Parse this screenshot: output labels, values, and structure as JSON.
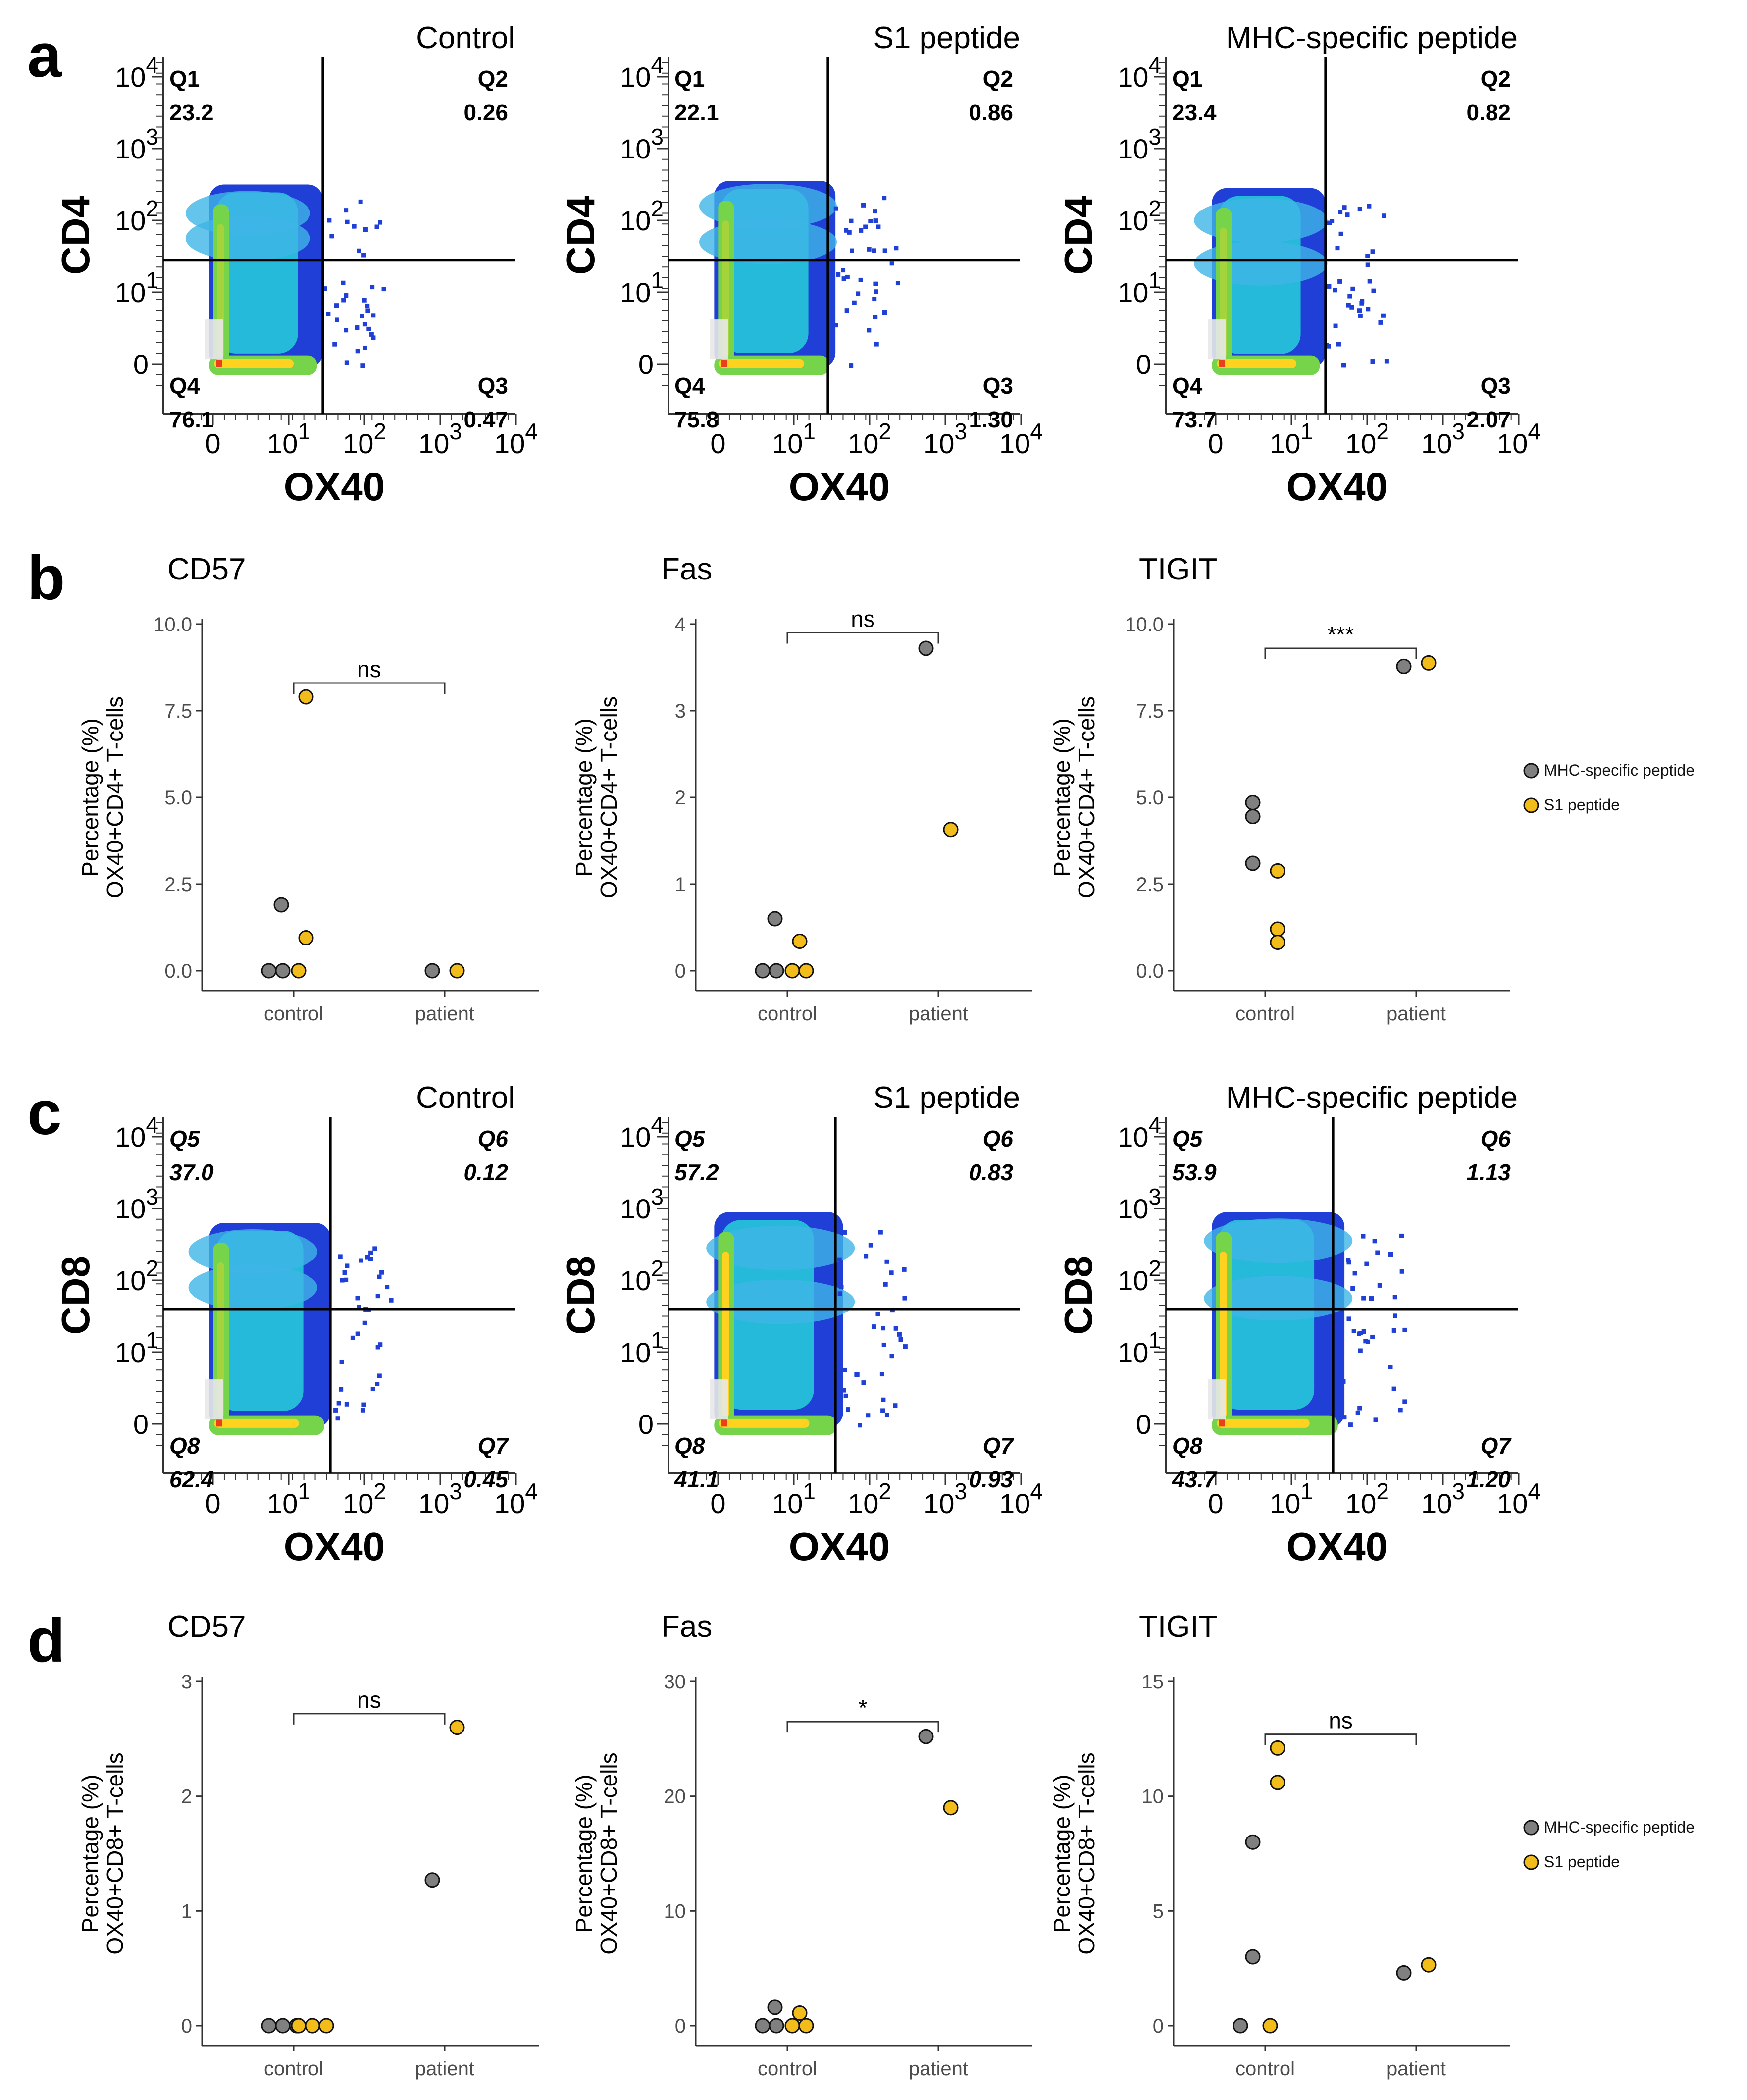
{
  "figure": {
    "colors": {
      "mhc": "#808080",
      "s1": "#F2BC1B",
      "axis": "#333333",
      "gate": "#000000",
      "flow_low": "#1f3fd6",
      "flow_mid": "#26c6da",
      "flow_high": "#76d44a",
      "flow_peak": "#ffd21f",
      "flow_max": "#e8401a"
    },
    "legend": {
      "items": [
        "MHC-specific peptide",
        "S1 peptide"
      ]
    }
  },
  "chart_data": [
    {
      "panel": "a",
      "type": "flow-quadrant",
      "y_channel": "CD4",
      "x_channel": "OX40",
      "y_ticks": [
        {
          "base": "0",
          "exp": ""
        },
        {
          "base": "10",
          "exp": "1"
        },
        {
          "base": "10",
          "exp": "2"
        },
        {
          "base": "10",
          "exp": "3"
        },
        {
          "base": "10",
          "exp": "4"
        }
      ],
      "x_ticks": [
        {
          "base": "0",
          "exp": ""
        },
        {
          "base": "10",
          "exp": "1"
        },
        {
          "base": "10",
          "exp": "2"
        },
        {
          "base": "10",
          "exp": "3"
        },
        {
          "base": "10",
          "exp": "4"
        }
      ],
      "plots": [
        {
          "title": "Control",
          "gate": [
            1.45,
            1.45
          ],
          "q": [
            {
              "label": "Q1",
              "value": "23.2"
            },
            {
              "label": "Q2",
              "value": "0.26"
            },
            {
              "label": "Q3",
              "value": "0.47"
            },
            {
              "label": "Q4",
              "value": "76.1"
            }
          ],
          "blob": {
            "xmax": 1.45,
            "ymax": 2.5,
            "lobes": [
              1.75,
              2.1
            ],
            "spread": 0.14
          }
        },
        {
          "title": "S1 peptide",
          "gate": [
            1.45,
            1.45
          ],
          "q": [
            {
              "label": "Q1",
              "value": "22.1"
            },
            {
              "label": "Q2",
              "value": "0.86"
            },
            {
              "label": "Q3",
              "value": "1.30"
            },
            {
              "label": "Q4",
              "value": "75.8"
            }
          ],
          "blob": {
            "xmax": 1.55,
            "ymax": 2.55,
            "lobes": [
              1.7,
              2.2
            ],
            "spread": 0.2
          }
        },
        {
          "title": "MHC-specific peptide",
          "gate": [
            1.45,
            1.45
          ],
          "q": [
            {
              "label": "Q1",
              "value": "23.4"
            },
            {
              "label": "Q2",
              "value": "0.82"
            },
            {
              "label": "Q3",
              "value": "2.07"
            },
            {
              "label": "Q4",
              "value": "73.7"
            }
          ],
          "blob": {
            "xmax": 1.45,
            "ymax": 2.45,
            "lobes": [
              1.4,
              2.0
            ],
            "spread": 0.18
          }
        }
      ]
    },
    {
      "panel": "b",
      "type": "scatter",
      "ylabel_line1": "Percentage (%)",
      "ylabel_line2": "OX40+CD4+ T-cells",
      "categories": [
        "control",
        "patient"
      ],
      "plots": [
        {
          "title": "CD57",
          "ylim": [
            0,
            10
          ],
          "yticks": [
            "0.0",
            "2.5",
            "5.0",
            "7.5",
            "10.0"
          ],
          "sig": "ns",
          "bracket_y": 8.3,
          "series": [
            {
              "name": "MHC-specific peptide",
              "values": [
                [
                  1,
                  1.9
                ],
                [
                  1,
                  0
                ],
                [
                  1,
                  0
                ],
                [
                  2,
                  0
                ]
              ]
            },
            {
              "name": "S1 peptide",
              "values": [
                [
                  1,
                  7.9
                ],
                [
                  1,
                  0.95
                ],
                [
                  1,
                  0
                ],
                [
                  2,
                  0
                ]
              ]
            }
          ]
        },
        {
          "title": "Fas",
          "ylim": [
            0,
            4
          ],
          "yticks": [
            "0",
            "1",
            "2",
            "3",
            "4"
          ],
          "sig": "ns",
          "bracket_y": 3.9,
          "series": [
            {
              "name": "MHC-specific peptide",
              "values": [
                [
                  1,
                  0.6
                ],
                [
                  1,
                  0
                ],
                [
                  1,
                  0
                ],
                [
                  2,
                  3.72
                ]
              ]
            },
            {
              "name": "S1 peptide",
              "values": [
                [
                  1,
                  0.34
                ],
                [
                  1,
                  0
                ],
                [
                  1,
                  0
                ],
                [
                  2,
                  1.63
                ]
              ]
            }
          ]
        },
        {
          "title": "TIGIT",
          "ylim": [
            0,
            10
          ],
          "yticks": [
            "0.0",
            "2.5",
            "5.0",
            "7.5",
            "10.0"
          ],
          "sig": "***",
          "bracket_y": 9.3,
          "series": [
            {
              "name": "MHC-specific peptide",
              "values": [
                [
                  1,
                  4.85
                ],
                [
                  1,
                  4.45
                ],
                [
                  1,
                  3.1
                ],
                [
                  2,
                  8.78
                ]
              ]
            },
            {
              "name": "S1 peptide",
              "values": [
                [
                  1,
                  2.88
                ],
                [
                  1,
                  1.2
                ],
                [
                  1,
                  0.82
                ],
                [
                  2,
                  8.88
                ]
              ]
            }
          ]
        }
      ]
    },
    {
      "panel": "c",
      "type": "flow-quadrant",
      "y_channel": "CD8",
      "x_channel": "OX40",
      "y_ticks": [
        {
          "base": "0",
          "exp": ""
        },
        {
          "base": "10",
          "exp": "1"
        },
        {
          "base": "10",
          "exp": "2"
        },
        {
          "base": "10",
          "exp": "3"
        },
        {
          "base": "10",
          "exp": "4"
        }
      ],
      "x_ticks": [
        {
          "base": "0",
          "exp": ""
        },
        {
          "base": "10",
          "exp": "1"
        },
        {
          "base": "10",
          "exp": "2"
        },
        {
          "base": "10",
          "exp": "3"
        },
        {
          "base": "10",
          "exp": "4"
        }
      ],
      "plots": [
        {
          "title": "Control",
          "gate": [
            1.55,
            1.6
          ],
          "q": [
            {
              "label": "Q5",
              "value": "37.0"
            },
            {
              "label": "Q6",
              "value": "0.12"
            },
            {
              "label": "Q7",
              "value": "0.45"
            },
            {
              "label": "Q8",
              "value": "62.4"
            }
          ],
          "blob": {
            "xmax": 1.55,
            "ymax": 2.8,
            "lobes": [
              1.9,
              2.4
            ],
            "spread": 0.16
          }
        },
        {
          "title": "S1 peptide",
          "gate": [
            1.55,
            1.6
          ],
          "q": [
            {
              "label": "Q5",
              "value": "57.2"
            },
            {
              "label": "Q6",
              "value": "0.83"
            },
            {
              "label": "Q7",
              "value": "0.93"
            },
            {
              "label": "Q8",
              "value": "41.1"
            }
          ],
          "blob": {
            "xmax": 1.65,
            "ymax": 2.95,
            "lobes": [
              1.7,
              2.45
            ],
            "spread": 0.25
          }
        },
        {
          "title": "MHC-specific peptide",
          "gate": [
            1.55,
            1.6
          ],
          "q": [
            {
              "label": "Q5",
              "value": "53.9"
            },
            {
              "label": "Q6",
              "value": "1.13"
            },
            {
              "label": "Q7",
              "value": "1.20"
            },
            {
              "label": "Q8",
              "value": "43.7"
            }
          ],
          "blob": {
            "xmax": 1.7,
            "ymax": 2.95,
            "lobes": [
              1.75,
              2.55
            ],
            "spread": 0.25
          }
        }
      ]
    },
    {
      "panel": "d",
      "type": "scatter",
      "ylabel_line1": "Percentage (%)",
      "ylabel_line2": "OX40+CD8+ T-cells",
      "categories": [
        "control",
        "patient"
      ],
      "plots": [
        {
          "title": "CD57",
          "ylim": [
            0,
            3
          ],
          "yticks": [
            "0",
            "1",
            "2",
            "3"
          ],
          "sig": "ns",
          "bracket_y": 2.72,
          "series": [
            {
              "name": "MHC-specific peptide",
              "values": [
                [
                  1,
                  0
                ],
                [
                  1,
                  0
                ],
                [
                  1,
                  0
                ],
                [
                  2,
                  1.27
                ]
              ]
            },
            {
              "name": "S1 peptide",
              "values": [
                [
                  1,
                  0
                ],
                [
                  1,
                  0
                ],
                [
                  1,
                  0
                ],
                [
                  2,
                  2.6
                ]
              ]
            }
          ]
        },
        {
          "title": "Fas",
          "ylim": [
            0,
            30
          ],
          "yticks": [
            "0",
            "10",
            "20",
            "30"
          ],
          "sig": "*",
          "bracket_y": 26.5,
          "series": [
            {
              "name": "MHC-specific peptide",
              "values": [
                [
                  1,
                  1.6
                ],
                [
                  1,
                  0
                ],
                [
                  1,
                  0
                ],
                [
                  2,
                  25.2
                ]
              ]
            },
            {
              "name": "S1 peptide",
              "values": [
                [
                  1,
                  1.1
                ],
                [
                  1,
                  0
                ],
                [
                  1,
                  0
                ],
                [
                  2,
                  19.0
                ]
              ]
            }
          ]
        },
        {
          "title": "TIGIT",
          "ylim": [
            0,
            15
          ],
          "yticks": [
            "0",
            "5",
            "10",
            "15"
          ],
          "sig": "ns",
          "bracket_y": 12.7,
          "series": [
            {
              "name": "MHC-specific peptide",
              "values": [
                [
                  1,
                  8.0
                ],
                [
                  1,
                  3.0
                ],
                [
                  1,
                  0
                ],
                [
                  2,
                  2.3
                ]
              ]
            },
            {
              "name": "S1 peptide",
              "values": [
                [
                  1,
                  12.1
                ],
                [
                  1,
                  10.6
                ],
                [
                  1,
                  0
                ],
                [
                  2,
                  2.65
                ]
              ]
            }
          ]
        }
      ]
    }
  ]
}
